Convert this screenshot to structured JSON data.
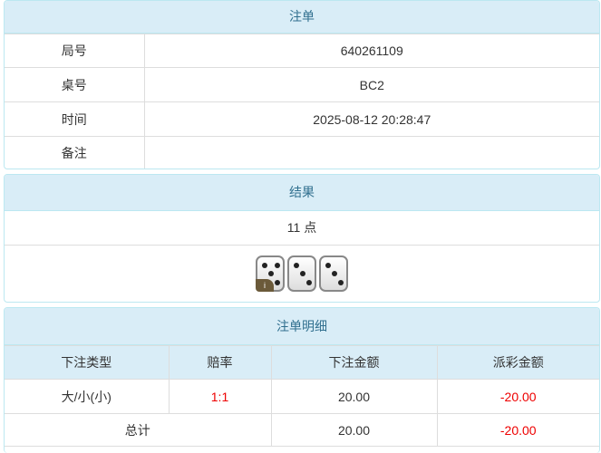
{
  "order": {
    "title": "注单",
    "rows": [
      {
        "label": "局号",
        "value": "640261109"
      },
      {
        "label": "桌号",
        "value": "BC2"
      },
      {
        "label": "时间",
        "value": "2025-08-12 20:28:47"
      },
      {
        "label": "备注",
        "value": ""
      }
    ]
  },
  "result": {
    "title": "结果",
    "points": "11 点",
    "dice": [
      5,
      3,
      3
    ],
    "badge": "i"
  },
  "detail": {
    "title": "注单明细",
    "headers": [
      "下注类型",
      "赔率",
      "下注金额",
      "派彩金额"
    ],
    "rows": [
      {
        "type": "大/小(小)",
        "odds": "1:1",
        "bet": "20.00",
        "payout": "-20.00"
      }
    ],
    "total": {
      "label": "总计",
      "bet": "20.00",
      "payout": "-20.00"
    }
  },
  "colors": {
    "header_bg": "#d9edf7",
    "header_text": "#31708f",
    "negative": "#e00000"
  }
}
